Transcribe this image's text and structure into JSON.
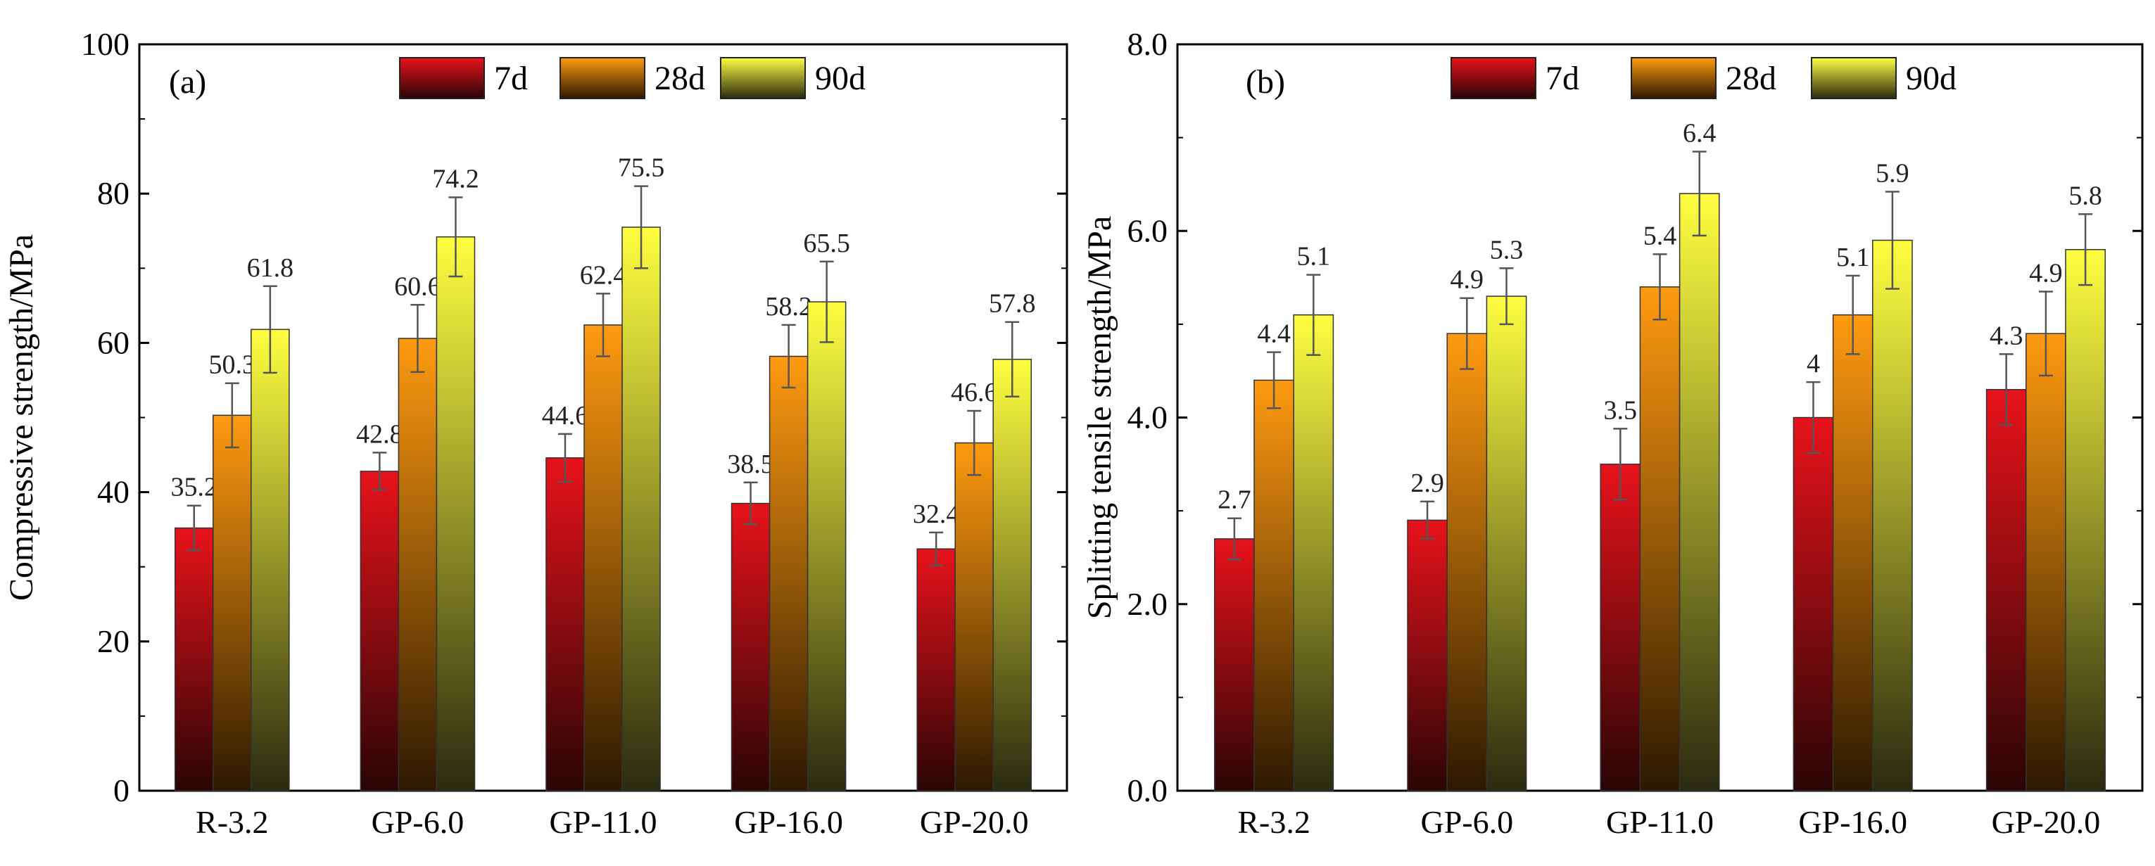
{
  "chart_data": [
    {
      "type": "bar",
      "panel": "(a)",
      "ylabel": "Compressive strength/MPa",
      "xlabel": "",
      "ylim": [
        0,
        100
      ],
      "yticks": [
        0,
        20,
        40,
        60,
        80,
        100
      ],
      "ytick_labels": [
        "0",
        "20",
        "40",
        "60",
        "80",
        "100"
      ],
      "categories": [
        "R-3.2",
        "GP-6.0",
        "GP-11.0",
        "GP-16.0",
        "GP-20.0"
      ],
      "series": [
        {
          "name": "7d",
          "values": [
            35.2,
            42.8,
            44.6,
            38.5,
            32.4
          ],
          "errors": [
            3.0,
            2.5,
            3.2,
            2.8,
            2.2
          ],
          "labels": [
            "35.2",
            "42.8",
            "44.6",
            "38.5",
            "32.4"
          ],
          "color_top": "#e8121b",
          "color_bottom": "#2a0505"
        },
        {
          "name": "28d",
          "values": [
            50.3,
            60.6,
            62.4,
            58.2,
            46.6
          ],
          "errors": [
            4.3,
            4.5,
            4.2,
            4.2,
            4.3
          ],
          "labels": [
            "50.3",
            "60.6",
            "62.4",
            "58.2",
            "46.6"
          ],
          "color_top": "#ff9a10",
          "color_bottom": "#2d1800"
        },
        {
          "name": "90d",
          "values": [
            61.8,
            74.2,
            75.5,
            65.5,
            57.8
          ],
          "errors": [
            5.8,
            5.3,
            5.5,
            5.4,
            5.0
          ],
          "labels": [
            "61.8",
            "74.2",
            "75.5",
            "65.5",
            "57.8"
          ],
          "color_top": "#fffe40",
          "color_bottom": "#2a2a10"
        }
      ],
      "legend": "top-center",
      "grid": false
    },
    {
      "type": "bar",
      "panel": "(b)",
      "ylabel": "Splitting tensile strength/MPa",
      "xlabel": "",
      "ylim": [
        0,
        8
      ],
      "yticks": [
        0,
        2,
        4,
        6,
        8
      ],
      "ytick_labels": [
        "0.0",
        "2.0",
        "4.0",
        "6.0",
        "8.0"
      ],
      "categories": [
        "R-3.2",
        "GP-6.0",
        "GP-11.0",
        "GP-16.0",
        "GP-20.0"
      ],
      "series": [
        {
          "name": "7d",
          "values": [
            2.7,
            2.9,
            3.5,
            4.0,
            4.3
          ],
          "errors": [
            0.22,
            0.2,
            0.38,
            0.38,
            0.38
          ],
          "labels": [
            "2.7",
            "2.9",
            "3.5",
            "4",
            "4.3"
          ],
          "color_top": "#e8121b",
          "color_bottom": "#2a0505"
        },
        {
          "name": "28d",
          "values": [
            4.4,
            4.9,
            5.4,
            5.1,
            4.9
          ],
          "errors": [
            0.3,
            0.38,
            0.35,
            0.42,
            0.45
          ],
          "labels": [
            "4.4",
            "4.9",
            "5.4",
            "5.1",
            "4.9"
          ],
          "color_top": "#ff9a10",
          "color_bottom": "#2d1800"
        },
        {
          "name": "90d",
          "values": [
            5.1,
            5.3,
            6.4,
            5.9,
            5.8
          ],
          "errors": [
            0.43,
            0.3,
            0.45,
            0.52,
            0.38
          ],
          "labels": [
            "5.1",
            "5.3",
            "6.4",
            "5.9",
            "5.8"
          ],
          "color_top": "#fffe40",
          "color_bottom": "#2a2a10"
        }
      ],
      "legend": "top-center",
      "grid": false
    }
  ]
}
